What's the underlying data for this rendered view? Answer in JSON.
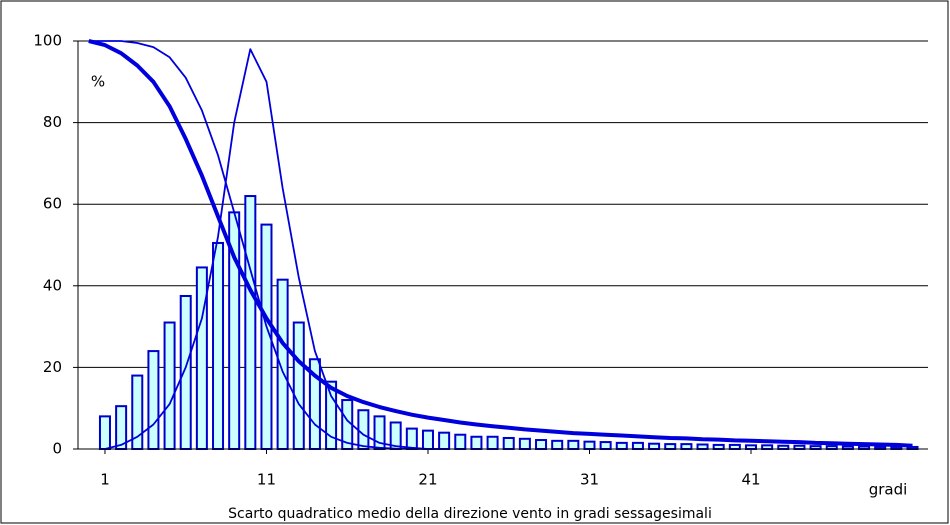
{
  "chart_data": {
    "type": "bar-line",
    "y_label": "%",
    "x_label": "gradi",
    "x_title": "Scarto quadratico medio della direzione vento in gradi sessagesimali",
    "xlim": [
      -0.67,
      51.96
    ],
    "ylim": [
      0,
      100
    ],
    "xticks": [
      1,
      11,
      21,
      31,
      41
    ],
    "yticks": [
      0,
      20,
      40,
      60,
      80,
      100
    ],
    "grid": true,
    "bars": {
      "color": "#ccffff",
      "edge": "#0000cc",
      "x": [
        1,
        2,
        3,
        4,
        5,
        6,
        7,
        8,
        9,
        10,
        11,
        12,
        13,
        14,
        15,
        16,
        17,
        18,
        19,
        20,
        21,
        22,
        23,
        24,
        25,
        26,
        27,
        28,
        29,
        30,
        31,
        32,
        33,
        34,
        35,
        36,
        37,
        38,
        39,
        40,
        41,
        42,
        43,
        44,
        45,
        46,
        47,
        48,
        49,
        50,
        51
      ],
      "values": [
        8,
        10.5,
        18,
        24,
        31,
        37.5,
        44.5,
        50.5,
        58,
        62,
        55,
        41.5,
        31,
        22,
        16.5,
        12,
        9.5,
        8,
        6.5,
        5,
        4.5,
        4,
        3.5,
        3,
        3,
        2.7,
        2.5,
        2.2,
        2,
        2,
        1.8,
        1.7,
        1.5,
        1.5,
        1.3,
        1.2,
        1.2,
        1.1,
        1,
        1,
        0.9,
        0.9,
        0.8,
        0.8,
        0.7,
        0.7,
        0.6,
        0.6,
        0.5,
        0.5,
        0.5
      ]
    },
    "lines": [
      {
        "color": "#0000dd",
        "width": 4,
        "x": [
          0,
          1,
          2,
          3,
          4,
          5,
          6,
          7,
          8,
          9,
          10,
          11,
          12,
          13,
          14,
          15,
          16,
          17,
          18,
          19,
          20,
          21,
          22,
          23,
          24,
          25,
          26,
          27,
          28,
          29,
          30,
          31,
          32,
          33,
          34,
          35,
          36,
          37,
          38,
          39,
          40,
          41,
          42,
          43,
          44,
          45,
          46,
          47,
          48,
          49,
          50,
          51
        ],
        "values": [
          100,
          99,
          97,
          94,
          90,
          84,
          76,
          67,
          57,
          47,
          39,
          32,
          26,
          21.5,
          18,
          15,
          13,
          11.5,
          10.3,
          9.3,
          8.4,
          7.7,
          7.1,
          6.5,
          6,
          5.6,
          5.2,
          4.8,
          4.5,
          4.2,
          3.9,
          3.7,
          3.5,
          3.3,
          3.1,
          2.9,
          2.7,
          2.6,
          2.4,
          2.3,
          2.1,
          2,
          1.9,
          1.8,
          1.7,
          1.5,
          1.4,
          1.3,
          1.2,
          1.1,
          1,
          0.8
        ]
      },
      {
        "color": "#0000dd",
        "width": 1.8,
        "x": [
          0,
          1,
          2,
          3,
          4,
          5,
          6,
          7,
          8,
          9,
          10,
          11,
          12,
          13,
          14,
          15,
          16,
          17,
          18,
          19,
          20,
          21,
          22
        ],
        "values": [
          100,
          100,
          100,
          99.5,
          98.5,
          96,
          91,
          83,
          72,
          58,
          44,
          30,
          19,
          11,
          6,
          3,
          1.5,
          0.7,
          0.3,
          0.1,
          0,
          0,
          0
        ]
      },
      {
        "color": "#0000dd",
        "width": 1.8,
        "x": [
          1,
          2,
          3,
          4,
          5,
          6,
          7,
          8,
          9,
          10,
          11,
          12,
          13,
          14,
          15,
          16,
          17,
          18,
          19,
          20,
          21,
          22
        ],
        "values": [
          0,
          1,
          3,
          6,
          11,
          20,
          32,
          52,
          80,
          98,
          90,
          64,
          42,
          24,
          13,
          7,
          3.5,
          1.5,
          0.7,
          0.3,
          0,
          0
        ]
      }
    ]
  }
}
